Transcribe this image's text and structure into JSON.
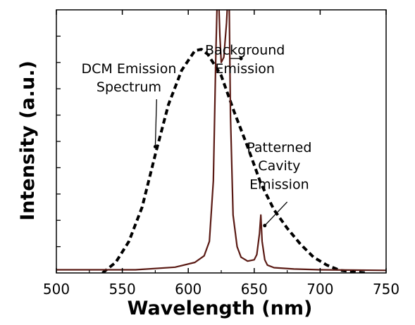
{
  "chart_data": {
    "type": "line",
    "xlabel": "Wavelength (nm)",
    "ylabel": "Intensity (a.u.)",
    "xlim": [
      500,
      750
    ],
    "ylim": [
      0,
      1.0
    ],
    "x_ticks": [
      500,
      550,
      600,
      650,
      700,
      750
    ],
    "y_ticks_labeled": false,
    "grid": false,
    "legend": "none",
    "series": [
      {
        "style": "dashed",
        "color": "#000000",
        "x": [
          535,
          545,
          555,
          565,
          575,
          585,
          595,
          605,
          610,
          615,
          625,
          635,
          645,
          655,
          665,
          675,
          685,
          695,
          705,
          715,
          725,
          735
        ],
        "y": [
          0.0,
          0.04,
          0.12,
          0.25,
          0.45,
          0.64,
          0.77,
          0.845,
          0.85,
          0.83,
          0.75,
          0.61,
          0.48,
          0.34,
          0.24,
          0.17,
          0.11,
          0.06,
          0.03,
          0.01,
          0.005,
          0.0
        ]
      },
      {
        "style": "solid",
        "color": "#5a1a14",
        "x": [
          500,
          560,
          590,
          605,
          612,
          616,
          619,
          621,
          622,
          623,
          624,
          625,
          627,
          629,
          630,
          631,
          632,
          634,
          637,
          640,
          645,
          650,
          652,
          654,
          655,
          656,
          658,
          660,
          665,
          680,
          700,
          750
        ],
        "y": [
          0.012,
          0.012,
          0.022,
          0.04,
          0.065,
          0.12,
          0.35,
          0.85,
          1.05,
          1.05,
          0.9,
          0.8,
          0.82,
          0.95,
          1.05,
          1.05,
          0.6,
          0.22,
          0.1,
          0.06,
          0.045,
          0.05,
          0.07,
          0.15,
          0.22,
          0.12,
          0.05,
          0.03,
          0.02,
          0.015,
          0.012,
          0.01
        ]
      }
    ],
    "annotations": [
      {
        "text": "DCM Emission",
        "x": 555,
        "y": 0.76
      },
      {
        "text": "Spectrum",
        "x": 555,
        "y": 0.69
      },
      {
        "text": "Background",
        "x": 643,
        "y": 0.83
      },
      {
        "text": "Emission",
        "x": 643,
        "y": 0.76
      },
      {
        "text": "Patterned",
        "x": 669,
        "y": 0.46
      },
      {
        "text": "Cavity",
        "x": 669,
        "y": 0.39
      },
      {
        "text": "Emission",
        "x": 669,
        "y": 0.32
      }
    ],
    "arrows": [
      {
        "from": [
          576,
          0.66
        ],
        "to": [
          575,
          0.48
        ]
      },
      {
        "from": [
          632,
          0.815
        ],
        "to": [
          640,
          0.815
        ]
      },
      {
        "from": [
          675,
          0.27
        ],
        "to": [
          658,
          0.18
        ]
      }
    ]
  }
}
